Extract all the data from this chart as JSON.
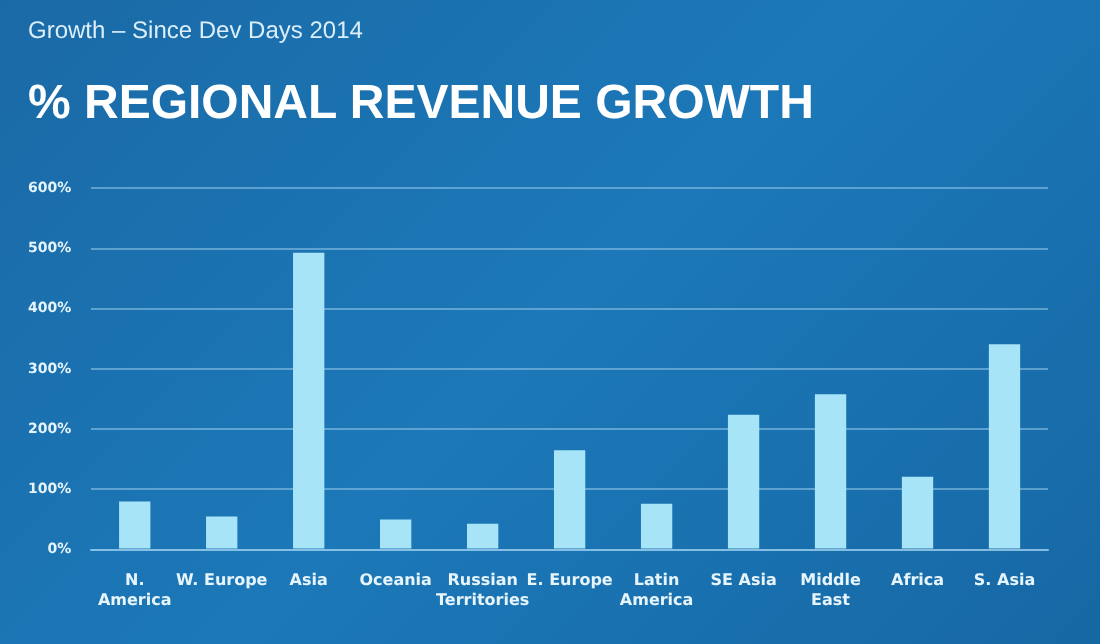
{
  "chart_data": {
    "type": "bar",
    "subtitle": "Growth – Since Dev Days 2014",
    "title": "% REGIONAL REVENUE GROWTH",
    "categories": [
      "N. America",
      "W. Europe",
      "Asia",
      "Oceania",
      "Russian Territories",
      "E. Europe",
      "Latin America",
      "SE Asia",
      "Middle East",
      "Africa",
      "S. Asia"
    ],
    "values": [
      80,
      55,
      493,
      50,
      43,
      165,
      76,
      224,
      258,
      121,
      341
    ],
    "color": "#a8e4f7",
    "ylim": [
      0,
      600
    ],
    "yticks": [
      {
        "value": 0,
        "label": "0%"
      },
      {
        "value": 100,
        "label": "100%"
      },
      {
        "value": 200,
        "label": "200%"
      },
      {
        "value": 300,
        "label": "300%"
      },
      {
        "value": 400,
        "label": "400%"
      },
      {
        "value": 500,
        "label": "500%"
      },
      {
        "value": 600,
        "label": "600%"
      }
    ],
    "grid": "y"
  }
}
